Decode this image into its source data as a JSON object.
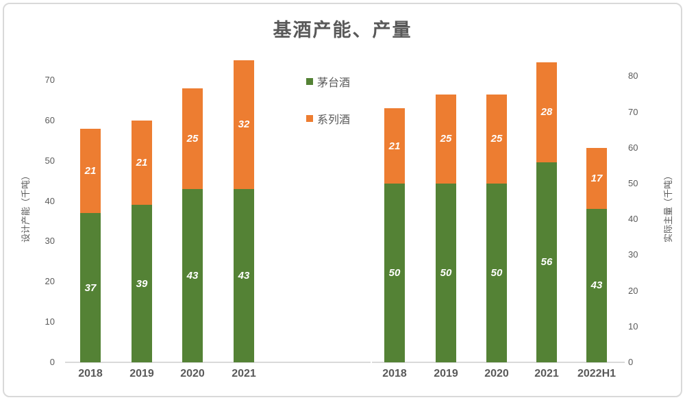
{
  "page": {
    "title": "基酒产能、产量"
  },
  "legend": {
    "items": [
      {
        "label": "茅台酒",
        "color": "#548235"
      },
      {
        "label": "系列酒",
        "color": "#ED7D31"
      }
    ]
  },
  "colors": {
    "maotai_green": "#548235",
    "series_orange": "#ED7D31",
    "text_gray": "#595959",
    "axis_line": "#D9D9D9",
    "value_label": "#FFFFFF",
    "border": "#D9D9D9",
    "background": "#FFFFFF"
  },
  "chart_data": [
    {
      "type": "bar",
      "stacked": true,
      "title": "基酒产能、产量",
      "ylabel": "设计产能（千吨）",
      "xlabel": "",
      "categories": [
        "2018",
        "2019",
        "2020",
        "2021"
      ],
      "series": [
        {
          "name": "茅台酒",
          "color": "#548235",
          "values": [
            37,
            39,
            43,
            43
          ]
        },
        {
          "name": "系列酒",
          "color": "#ED7D31",
          "values": [
            21,
            21,
            25,
            32
          ]
        }
      ],
      "totals": [
        58,
        60,
        68,
        75
      ],
      "yticks": [
        0,
        10,
        20,
        30,
        40,
        50,
        60,
        70
      ],
      "ylim": [
        0,
        75
      ],
      "grid": false,
      "axis_side": "left",
      "legend_position": "top-center"
    },
    {
      "type": "bar",
      "stacked": true,
      "title": "基酒产能、产量",
      "ylabel": "实际主量（千吨）",
      "xlabel": "",
      "categories": [
        "2018",
        "2019",
        "2020",
        "2021",
        "2022H1"
      ],
      "series": [
        {
          "name": "茅台酒",
          "color": "#548235",
          "values": [
            50,
            50,
            50,
            56,
            43
          ]
        },
        {
          "name": "系列酒",
          "color": "#ED7D31",
          "values": [
            21,
            25,
            25,
            28,
            17
          ]
        }
      ],
      "totals": [
        71,
        75,
        75,
        84,
        60
      ],
      "yticks": [
        0,
        10,
        20,
        30,
        40,
        50,
        60,
        70,
        80
      ],
      "ylim": [
        0,
        84
      ],
      "grid": false,
      "axis_side": "right",
      "legend_position": "top-center"
    }
  ]
}
